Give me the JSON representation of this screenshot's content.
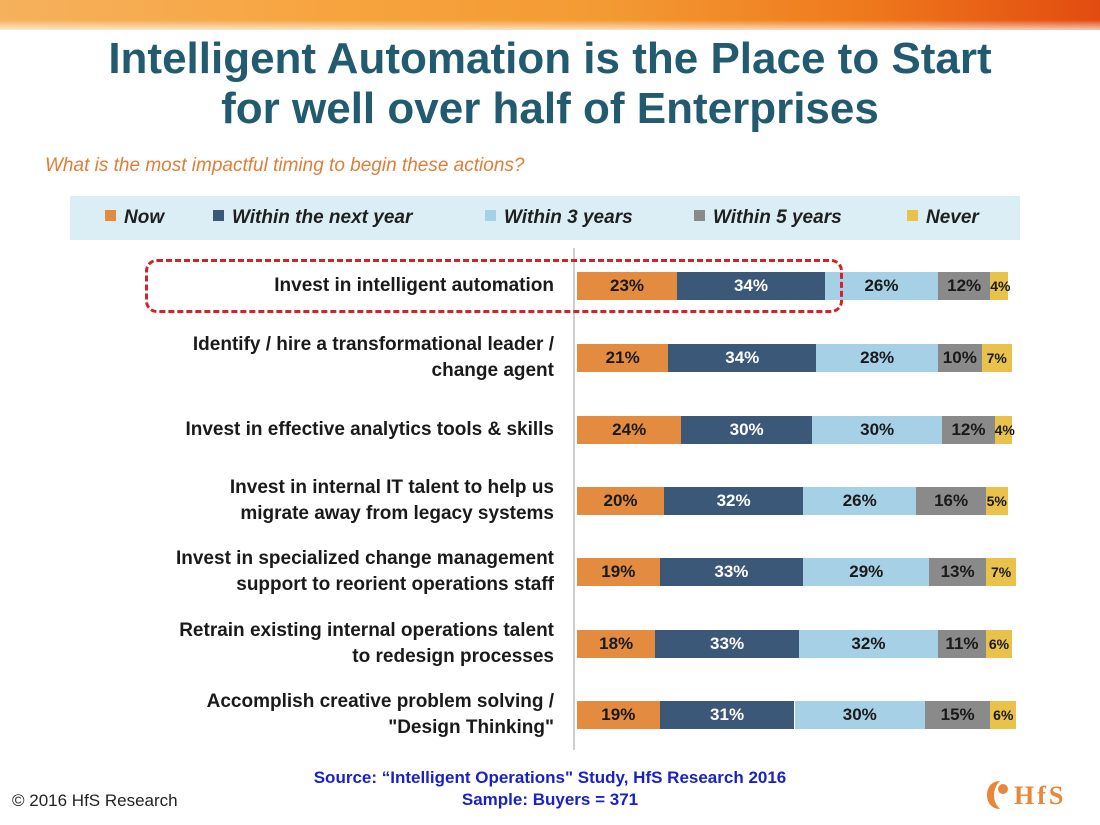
{
  "slide": {
    "title_line1": "Intelligent Automation is the Place to Start",
    "title_line2": "for well over half of Enterprises",
    "subtitle": "What is the most impactful timing to begin these actions?",
    "source": "Source: “Intelligent Operations\" Study, HfS Research 2016",
    "sample": "Sample: Buyers = 371",
    "copyright": "© 2016 HfS Research",
    "logo_text": "HfS"
  },
  "colors": {
    "Now": "#e38b3f",
    "Within the next year": "#3c5878",
    "Within 3 years": "#a6d0e5",
    "Within 5 years": "#8a8a8a",
    "Never": "#e8c24b",
    "title": "#225b6f",
    "subtitle": "#e07d36",
    "highlight": "#d62128",
    "source": "#1a21c9"
  },
  "chart_data": {
    "type": "bar",
    "orientation": "horizontal",
    "stacked": true,
    "categories": [
      "Invest in intelligent automation",
      "Identify / hire a transformational leader / change agent",
      "Invest in effective analytics tools & skills",
      "Invest in internal IT talent to help us migrate away from legacy systems",
      "Invest in specialized change management support to reorient operations staff",
      "Retrain existing internal operations talent to redesign processes",
      "Accomplish creative problem solving / \"Design Thinking\""
    ],
    "category_lines": [
      [
        "Invest in intelligent automation"
      ],
      [
        "Identify / hire a transformational leader /",
        "change agent"
      ],
      [
        "Invest in effective analytics tools & skills"
      ],
      [
        "Invest in internal IT talent to help us",
        "migrate away from legacy systems"
      ],
      [
        "Invest in specialized change management",
        "support to reorient operations staff"
      ],
      [
        "Retrain existing internal operations talent",
        "to redesign processes"
      ],
      [
        "Accomplish creative problem solving /",
        "\"Design Thinking\""
      ]
    ],
    "series": [
      {
        "name": "Now",
        "values": [
          23,
          21,
          24,
          20,
          19,
          18,
          19
        ]
      },
      {
        "name": "Within the next year",
        "values": [
          34,
          34,
          30,
          32,
          33,
          33,
          31
        ]
      },
      {
        "name": "Within 3 years",
        "values": [
          26,
          28,
          30,
          26,
          29,
          32,
          30
        ]
      },
      {
        "name": "Within 5 years",
        "values": [
          12,
          10,
          12,
          16,
          13,
          11,
          15
        ]
      },
      {
        "name": "Never",
        "values": [
          4,
          7,
          4,
          5,
          7,
          6,
          6
        ]
      }
    ],
    "value_suffix": "%",
    "legend_position": "top",
    "highlighted_category": "Invest in intelligent automation"
  }
}
